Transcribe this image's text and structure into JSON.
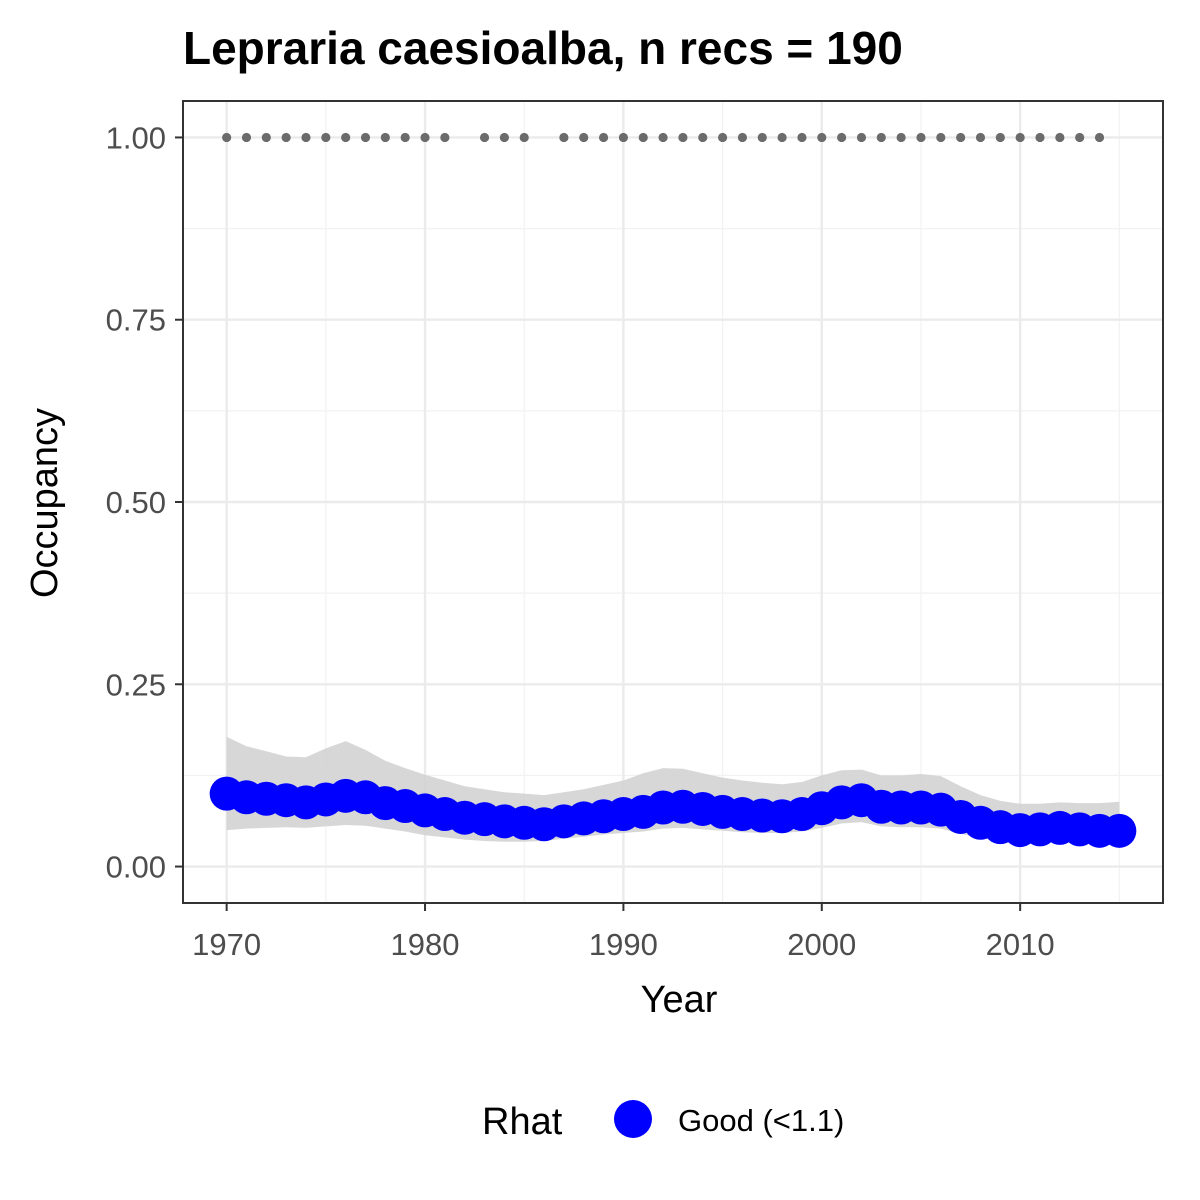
{
  "chart_data": {
    "type": "line",
    "title": "Lepraria caesioalba, n recs = 190",
    "xlabel": "Year",
    "ylabel": "Occupancy",
    "xlim": [
      1967.8,
      2017.2
    ],
    "ylim": [
      -0.05,
      1.05
    ],
    "x_ticks": [
      1970,
      1980,
      1990,
      2000,
      2010
    ],
    "x_tick_labels": [
      "1970",
      "1980",
      "1990",
      "2000",
      "2010"
    ],
    "y_ticks": [
      0,
      0.25,
      0.5,
      0.75,
      1
    ],
    "y_tick_labels": [
      "0.00",
      "0.25",
      "0.50",
      "0.75",
      "1.00"
    ],
    "grid": true,
    "legend": {
      "position": "bottom",
      "title": "Rhat",
      "entries": [
        {
          "label": "Good (<1.1)",
          "color": "#0000ff"
        }
      ]
    },
    "colors": {
      "occupancy": "#0000ff",
      "ribbon": "#d3d3d3",
      "records": "#6b6b6b"
    },
    "series": [
      {
        "x": [
          1970,
          1971,
          1972,
          1973,
          1974,
          1975,
          1976,
          1977,
          1978,
          1979,
          1980,
          1981,
          1982,
          1983,
          1984,
          1985,
          1986,
          1987,
          1988,
          1989,
          1990,
          1991,
          1992,
          1993,
          1994,
          1995,
          1996,
          1997,
          1998,
          1999,
          2000,
          2001,
          2002,
          2003,
          2004,
          2005,
          2006,
          2007,
          2008,
          2009,
          2010,
          2011,
          2012,
          2013,
          2014,
          2015
        ],
        "y": [
          0.1,
          0.095,
          0.093,
          0.091,
          0.088,
          0.092,
          0.097,
          0.095,
          0.087,
          0.083,
          0.077,
          0.072,
          0.067,
          0.065,
          0.062,
          0.06,
          0.058,
          0.062,
          0.066,
          0.069,
          0.072,
          0.075,
          0.081,
          0.082,
          0.079,
          0.075,
          0.072,
          0.07,
          0.069,
          0.072,
          0.08,
          0.088,
          0.091,
          0.082,
          0.081,
          0.081,
          0.078,
          0.068,
          0.06,
          0.054,
          0.05,
          0.051,
          0.053,
          0.051,
          0.049,
          0.049
        ],
        "lower": [
          0.05,
          0.052,
          0.053,
          0.054,
          0.053,
          0.055,
          0.057,
          0.056,
          0.052,
          0.048,
          0.043,
          0.04,
          0.037,
          0.035,
          0.034,
          0.034,
          0.035,
          0.038,
          0.041,
          0.044,
          0.046,
          0.048,
          0.052,
          0.053,
          0.051,
          0.049,
          0.047,
          0.046,
          0.046,
          0.048,
          0.053,
          0.059,
          0.061,
          0.055,
          0.054,
          0.054,
          0.052,
          0.045,
          0.039,
          0.035,
          0.032,
          0.033,
          0.034,
          0.033,
          0.031,
          0.03
        ],
        "upper": [
          0.178,
          0.165,
          0.158,
          0.151,
          0.15,
          0.162,
          0.172,
          0.16,
          0.145,
          0.135,
          0.126,
          0.118,
          0.11,
          0.106,
          0.102,
          0.1,
          0.098,
          0.102,
          0.106,
          0.112,
          0.118,
          0.128,
          0.135,
          0.134,
          0.128,
          0.122,
          0.118,
          0.115,
          0.113,
          0.116,
          0.125,
          0.132,
          0.133,
          0.125,
          0.125,
          0.127,
          0.124,
          0.11,
          0.098,
          0.09,
          0.086,
          0.086,
          0.088,
          0.087,
          0.087,
          0.089
        ]
      }
    ],
    "record_years": [
      1970,
      1971,
      1972,
      1973,
      1974,
      1975,
      1976,
      1977,
      1978,
      1979,
      1980,
      1981,
      1983,
      1984,
      1985,
      1987,
      1988,
      1989,
      1990,
      1991,
      1992,
      1993,
      1994,
      1995,
      1996,
      1997,
      1998,
      1999,
      2000,
      2001,
      2002,
      2003,
      2004,
      2005,
      2006,
      2007,
      2008,
      2009,
      2010,
      2011,
      2012,
      2013,
      2014
    ],
    "record_value": 1
  }
}
